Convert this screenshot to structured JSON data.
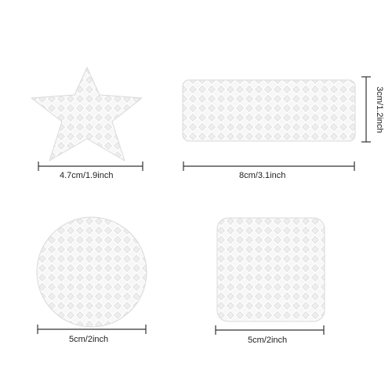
{
  "colors": {
    "background": "#ffffff",
    "patch_fill": "#f7f7f7",
    "patch_edge": "#d9d9d9",
    "diamond_cell": "#e6e6e6",
    "diamond_line": "#ffffff",
    "dimension_line": "#333333"
  },
  "patches": [
    {
      "shape": "star",
      "width_label": "4.7cm/1.9inch"
    },
    {
      "shape": "rectangle",
      "width_label": "8cm/3.1inch",
      "height_label": "3cm/1.2inch"
    },
    {
      "shape": "circle",
      "width_label": "5cm/2inch"
    },
    {
      "shape": "rounded-square",
      "width_label": "5cm/2inch"
    }
  ]
}
